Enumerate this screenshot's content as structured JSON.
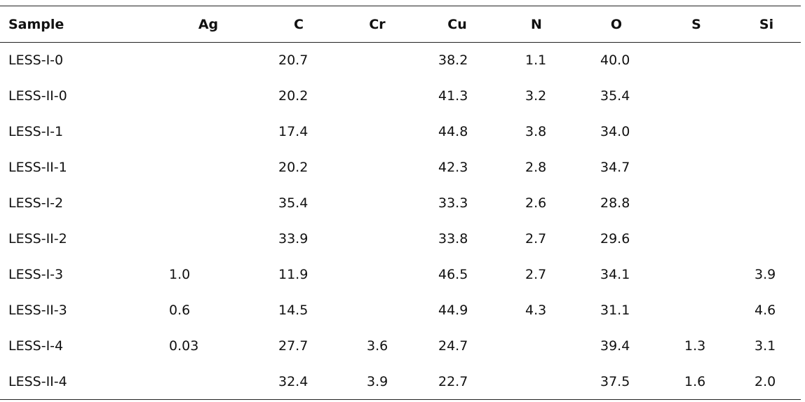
{
  "table": {
    "columns": [
      "Sample",
      "Ag",
      "C",
      "Cr",
      "Cu",
      "N",
      "O",
      "S",
      "Si"
    ],
    "rows": [
      [
        "LESS-I-0",
        null,
        "20.7",
        null,
        "38.2",
        "1.1",
        "40.0",
        null,
        null
      ],
      [
        "LESS-II-0",
        null,
        "20.2",
        null,
        "41.3",
        "3.2",
        "35.4",
        null,
        null
      ],
      [
        "LESS-I-1",
        null,
        "17.4",
        null,
        "44.8",
        "3.8",
        "34.0",
        null,
        null
      ],
      [
        "LESS-II-1",
        null,
        "20.2",
        null,
        "42.3",
        "2.8",
        "34.7",
        null,
        null
      ],
      [
        "LESS-I-2",
        null,
        "35.4",
        null,
        "33.3",
        "2.6",
        "28.8",
        null,
        null
      ],
      [
        "LESS-II-2",
        null,
        "33.9",
        null,
        "33.8",
        "2.7",
        "29.6",
        null,
        null
      ],
      [
        "LESS-I-3",
        "1.0",
        "11.9",
        null,
        "46.5",
        "2.7",
        "34.1",
        null,
        "3.9"
      ],
      [
        "LESS-II-3",
        "0.6",
        "14.5",
        null,
        "44.9",
        "4.3",
        "31.1",
        null,
        "4.6"
      ],
      [
        "LESS-I-4",
        "0.03",
        "27.7",
        "3.6",
        "24.7",
        null,
        "39.4",
        "1.3",
        "3.1"
      ],
      [
        "LESS-II-4",
        null,
        "32.4",
        "3.9",
        "22.7",
        null,
        "37.5",
        "1.6",
        "2.0"
      ]
    ]
  }
}
